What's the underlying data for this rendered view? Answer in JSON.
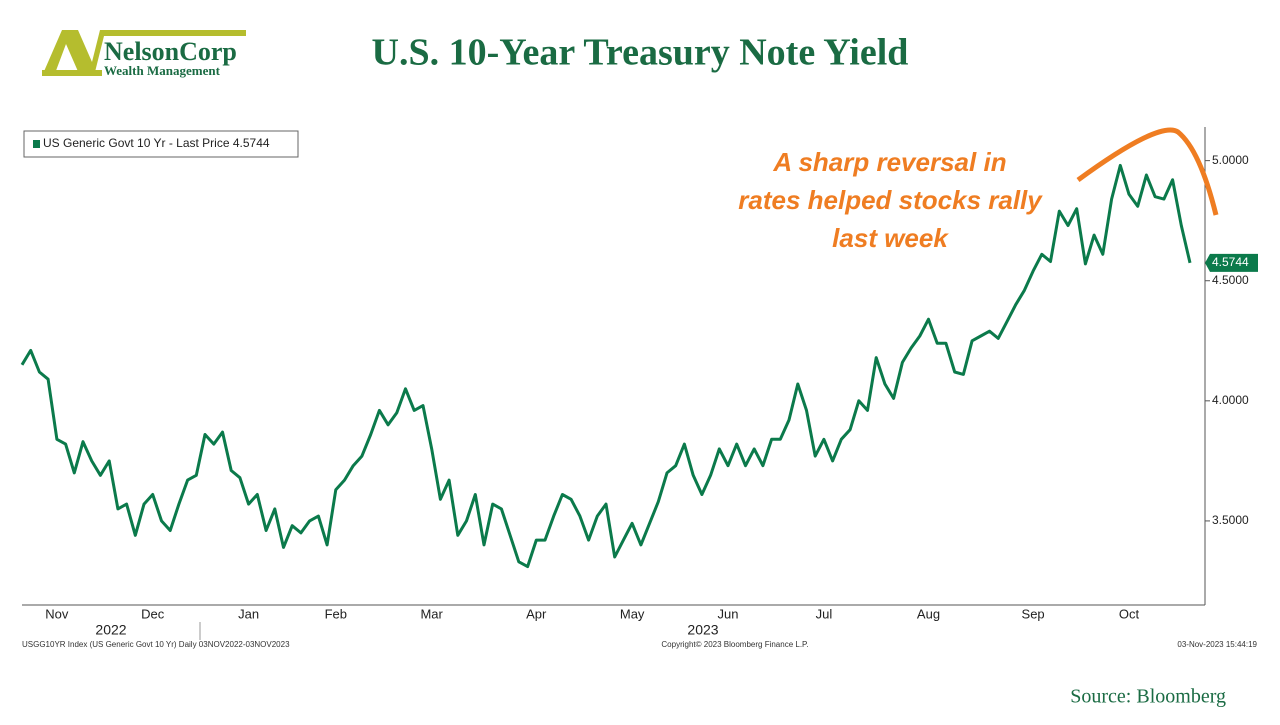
{
  "logo": {
    "name": "NelsonCorp",
    "tagline": "Wealth Management"
  },
  "chart_data": {
    "type": "line",
    "title": "U.S. 10-Year Treasury Note Yield",
    "annotation": "A sharp reversal in rates helped stocks rally last week",
    "categories": [
      null,
      null,
      null,
      null,
      "Nov",
      null,
      null,
      null,
      null,
      null,
      null,
      null,
      null,
      null,
      null,
      "Dec",
      null,
      null,
      null,
      null,
      null,
      null,
      null,
      null,
      null,
      null,
      "Jan",
      null,
      null,
      null,
      null,
      null,
      null,
      null,
      null,
      null,
      "Feb",
      null,
      null,
      null,
      null,
      null,
      null,
      null,
      null,
      null,
      null,
      "Mar",
      null,
      null,
      null,
      null,
      null,
      null,
      null,
      null,
      null,
      null,
      null,
      "Apr",
      null,
      null,
      null,
      null,
      null,
      null,
      null,
      null,
      null,
      null,
      "May",
      null,
      null,
      null,
      null,
      null,
      null,
      null,
      null,
      null,
      null,
      "Jun",
      null,
      null,
      null,
      null,
      null,
      null,
      null,
      null,
      null,
      null,
      "Jul",
      null,
      null,
      null,
      null,
      null,
      null,
      null,
      null,
      null,
      null,
      null,
      "Aug",
      null,
      null,
      null,
      null,
      null,
      null,
      null,
      null,
      null,
      null,
      null,
      "Sep",
      null,
      null,
      null,
      null,
      null,
      null,
      null,
      null,
      null,
      null,
      "Oct",
      null,
      null,
      null,
      null,
      null,
      null,
      null
    ],
    "year_labels": [
      "2022",
      "2023"
    ],
    "series": [
      {
        "name": "US Generic Govt 10 Yr - Last Price 4.5744",
        "color": "#0b7a4b",
        "values": [
          4.15,
          4.21,
          4.12,
          4.09,
          3.84,
          3.82,
          3.7,
          3.83,
          3.75,
          3.69,
          3.75,
          3.55,
          3.57,
          3.44,
          3.57,
          3.61,
          3.5,
          3.46,
          3.57,
          3.67,
          3.69,
          3.86,
          3.82,
          3.87,
          3.71,
          3.68,
          3.57,
          3.61,
          3.46,
          3.55,
          3.39,
          3.48,
          3.45,
          3.5,
          3.52,
          3.4,
          3.63,
          3.67,
          3.73,
          3.77,
          3.86,
          3.96,
          3.9,
          3.95,
          4.05,
          3.96,
          3.98,
          3.8,
          3.59,
          3.67,
          3.44,
          3.5,
          3.61,
          3.4,
          3.57,
          3.55,
          3.44,
          3.33,
          3.31,
          3.42,
          3.42,
          3.52,
          3.61,
          3.59,
          3.52,
          3.42,
          3.52,
          3.57,
          3.35,
          3.42,
          3.49,
          3.4,
          3.49,
          3.58,
          3.7,
          3.73,
          3.82,
          3.69,
          3.61,
          3.69,
          3.8,
          3.73,
          3.82,
          3.73,
          3.8,
          3.73,
          3.84,
          3.84,
          3.92,
          4.07,
          3.96,
          3.77,
          3.84,
          3.75,
          3.84,
          3.88,
          4.0,
          3.96,
          4.18,
          4.07,
          4.01,
          4.16,
          4.22,
          4.27,
          4.34,
          4.24,
          4.24,
          4.12,
          4.11,
          4.25,
          4.27,
          4.29,
          4.26,
          4.33,
          4.4,
          4.46,
          4.54,
          4.61,
          4.58,
          4.79,
          4.73,
          4.8,
          4.57,
          4.69,
          4.61,
          4.84,
          4.98,
          4.86,
          4.81,
          4.94,
          4.85,
          4.84,
          4.92,
          4.73,
          4.5744
        ]
      }
    ],
    "ylim": [
      3.15,
      5.14
    ],
    "yticks": [
      {
        "value": 3.5,
        "label": "3.5000"
      },
      {
        "value": 4.0,
        "label": "4.0000"
      },
      {
        "value": 4.5,
        "label": "4.5000"
      },
      {
        "value": 5.0,
        "label": "5.0000"
      }
    ],
    "footer": {
      "left": "USGG10YR Index (US Generic Govt 10 Yr) Daily 03NOV2022-03NOV2023",
      "center": "Copyright© 2023 Bloomberg Finance L.P.",
      "right": "03-Nov-2023 15:44:19"
    },
    "source": "Source: Bloomberg"
  }
}
